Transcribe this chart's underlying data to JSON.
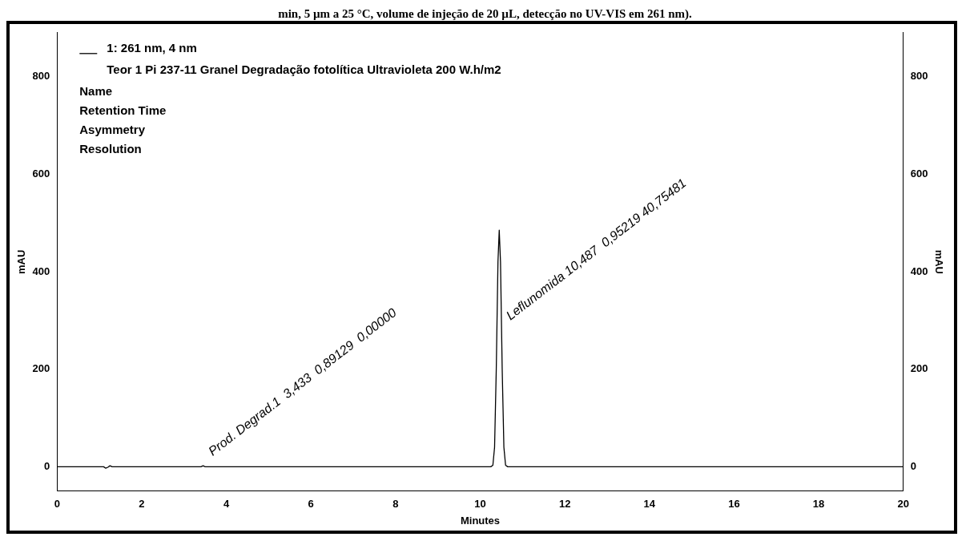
{
  "chart_data": {
    "type": "line",
    "title": "min, 5 µm a 25 °C, volume de injeção de 20 µL, detecção no UV-VIS em 261 nm).",
    "subtitle": "Teor 1 Pi 237-11 Granel Degradação fotolítica Ultravioleta 200 W.h/m2",
    "xlabel": "Minutes",
    "ylabel": "mAU",
    "y2label": "mAU",
    "x": [
      0,
      1.1,
      1.15,
      1.2,
      1.25,
      1.3,
      1.4,
      3.4,
      3.45,
      3.5,
      10.25,
      10.3,
      10.34,
      10.38,
      10.42,
      10.45,
      10.48,
      10.52,
      10.56,
      10.6,
      10.65,
      20
    ],
    "series": [
      {
        "name": "1: 261 nm, 4 nm",
        "color": "#000000",
        "values": [
          0,
          0,
          -3,
          -1,
          2,
          0,
          0,
          0,
          2,
          0,
          0,
          3,
          40,
          200,
          420,
          485,
          420,
          200,
          40,
          3,
          0,
          0
        ]
      }
    ],
    "xlim": [
      0,
      20
    ],
    "xticks": [
      0,
      2,
      4,
      6,
      8,
      10,
      12,
      14,
      16,
      18,
      20
    ],
    "ylim": [
      -50,
      890
    ],
    "yticks": [
      0,
      200,
      400,
      600,
      800
    ],
    "y2lim": [
      -50,
      890
    ],
    "y2ticks": [
      0,
      200,
      400,
      600,
      800
    ],
    "annotations": [
      "Name",
      "Retention Time",
      "Asymmetry",
      "Resolution",
      {
        "text": "Prod. Degrad.1  3,433  0,89129  0,00000",
        "x": 3.45,
        "y": 2
      },
      {
        "text": "Leflunomida 10,487  0,95219 40,75481",
        "x": 10.487,
        "y": 280
      }
    ],
    "legend": "top left",
    "grid": false,
    "marker": "none",
    "line_style": "solid"
  }
}
